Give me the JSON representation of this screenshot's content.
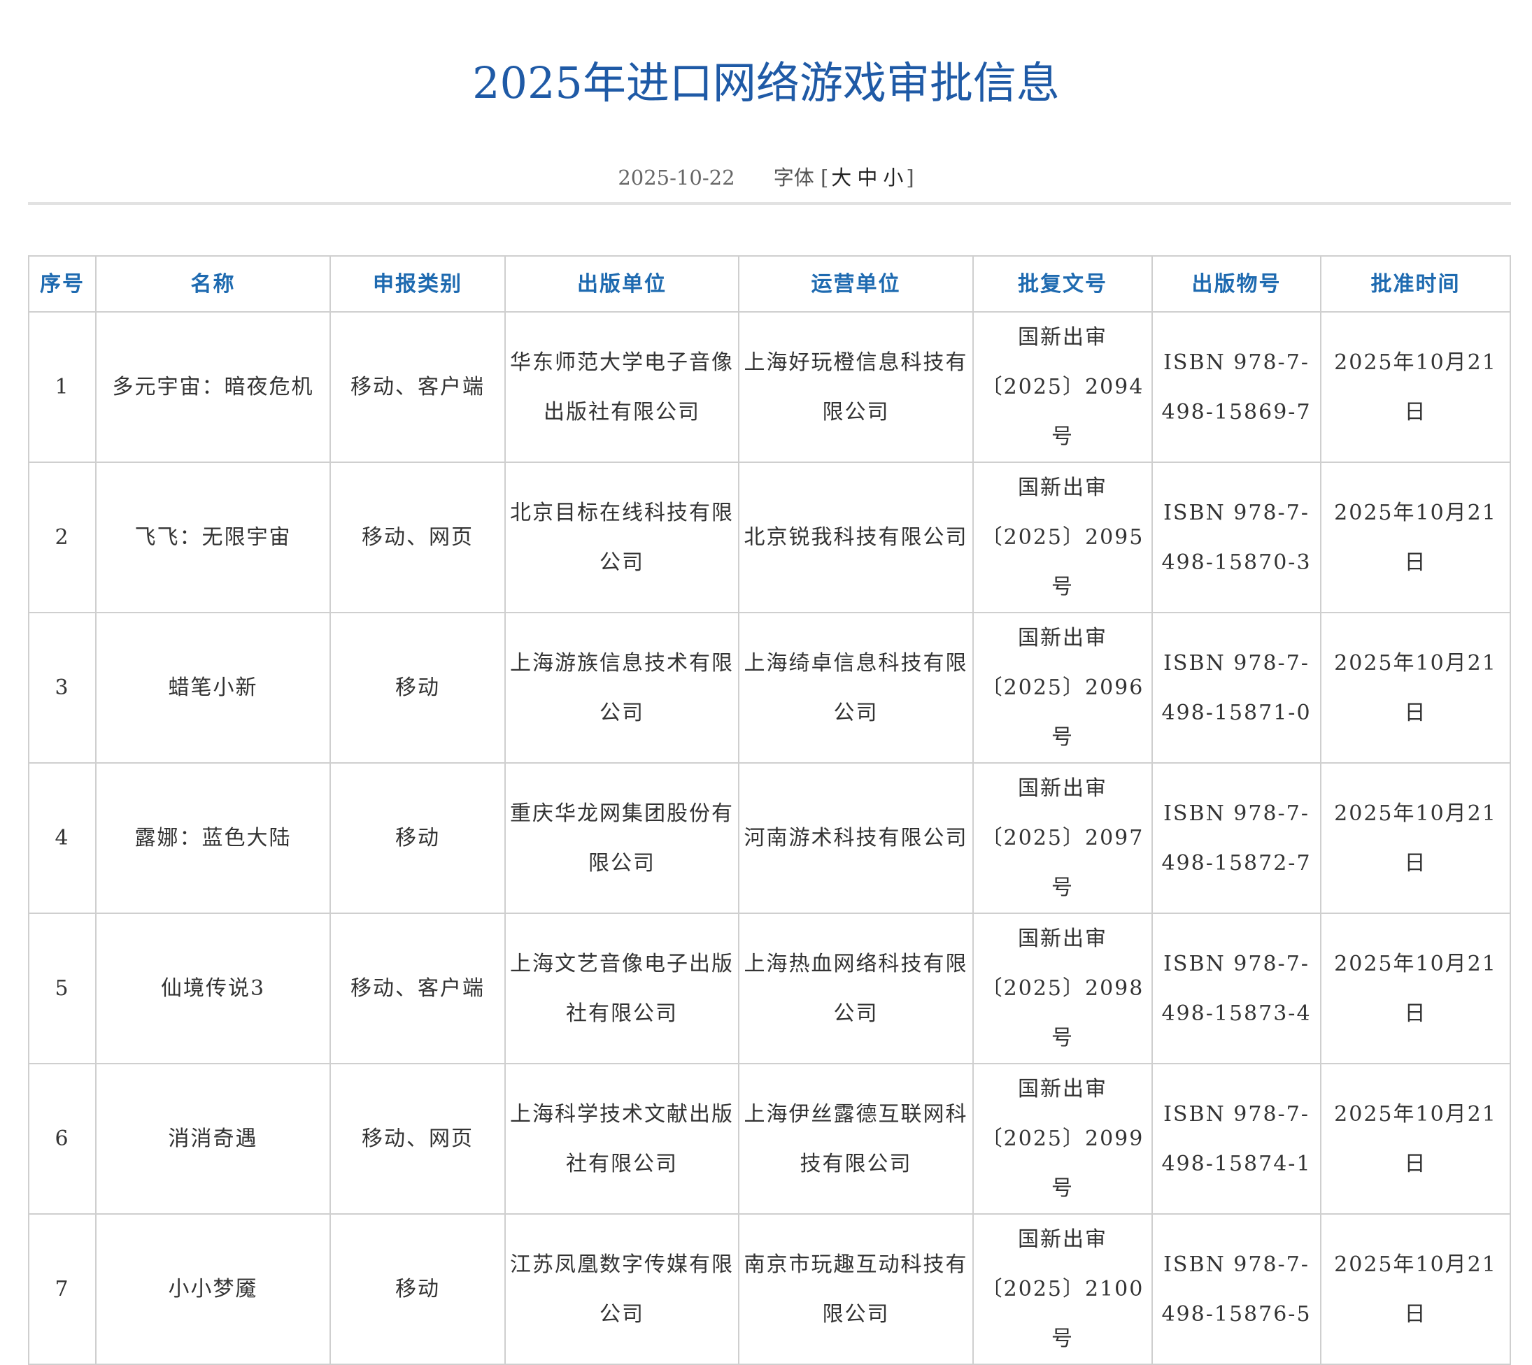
{
  "page": {
    "title": "2025年进口网络游戏审批信息",
    "date": "2025-10-22",
    "font_size_label": "字体",
    "font_sizes": [
      "大",
      "中",
      "小"
    ]
  },
  "colors": {
    "title": "#1f5aa6",
    "header_text": "#1e6ab0",
    "border": "#cfcfcf"
  },
  "table": {
    "headers": [
      "序号",
      "名称",
      "申报类别",
      "出版单位",
      "运营单位",
      "批复文号",
      "出版物号",
      "批准时间"
    ],
    "rows": [
      [
        "1",
        "多元宇宙：暗夜危机",
        "移动、客户端",
        "华东师范大学电子音像出版社有限公司",
        "上海好玩橙信息科技有限公司",
        "国新出审〔2025〕2094号",
        "ISBN 978-7-498-15869-7",
        "2025年10月21日"
      ],
      [
        "2",
        "飞飞：无限宇宙",
        "移动、网页",
        "北京目标在线科技有限公司",
        "北京锐我科技有限公司",
        "国新出审〔2025〕2095号",
        "ISBN 978-7-498-15870-3",
        "2025年10月21日"
      ],
      [
        "3",
        "蜡笔小新",
        "移动",
        "上海游族信息技术有限公司",
        "上海绮卓信息科技有限公司",
        "国新出审〔2025〕2096号",
        "ISBN 978-7-498-15871-0",
        "2025年10月21日"
      ],
      [
        "4",
        "露娜：蓝色大陆",
        "移动",
        "重庆华龙网集团股份有限公司",
        "河南游术科技有限公司",
        "国新出审〔2025〕2097号",
        "ISBN 978-7-498-15872-7",
        "2025年10月21日"
      ],
      [
        "5",
        "仙境传说3",
        "移动、客户端",
        "上海文艺音像电子出版社有限公司",
        "上海热血网络科技有限公司",
        "国新出审〔2025〕2098号",
        "ISBN 978-7-498-15873-4",
        "2025年10月21日"
      ],
      [
        "6",
        "消消奇遇",
        "移动、网页",
        "上海科学技术文献出版社有限公司",
        "上海伊丝露德互联网科技有限公司",
        "国新出审〔2025〕2099号",
        "ISBN 978-7-498-15874-1",
        "2025年10月21日"
      ],
      [
        "7",
        "小小梦魇",
        "移动",
        "江苏凤凰数字传媒有限公司",
        "南京市玩趣互动科技有限公司",
        "国新出审〔2025〕2100号",
        "ISBN 978-7-498-15876-5",
        "2025年10月21日"
      ]
    ]
  }
}
